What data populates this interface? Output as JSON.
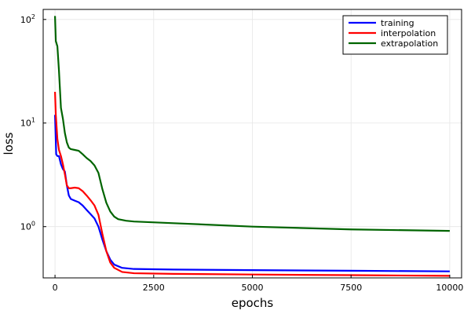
{
  "chart_data": {
    "type": "line",
    "title": "",
    "xlabel": "epochs",
    "ylabel": "loss",
    "y_scale": "log10",
    "xlim": [
      -300,
      10300
    ],
    "ylim": [
      0.32,
      125
    ],
    "x_ticks": [
      0,
      2500,
      5000,
      7500,
      10000
    ],
    "x_tick_labels": [
      "0",
      "2500",
      "5000",
      "7500",
      "10000"
    ],
    "y_ticks": [
      1,
      10,
      100
    ],
    "y_tick_bases": [
      "10",
      "10",
      "10"
    ],
    "y_tick_exponents": [
      "0",
      "1",
      "2"
    ],
    "grid": true,
    "legend_position": "top-right",
    "series": [
      {
        "name": "training",
        "color": "#0000ff",
        "points": [
          [
            0,
            12
          ],
          [
            30,
            5
          ],
          [
            60,
            4.8
          ],
          [
            100,
            4.8
          ],
          [
            150,
            4
          ],
          [
            200,
            3.6
          ],
          [
            250,
            3.4
          ],
          [
            300,
            2.5
          ],
          [
            350,
            2.0
          ],
          [
            400,
            1.85
          ],
          [
            500,
            1.78
          ],
          [
            600,
            1.72
          ],
          [
            700,
            1.6
          ],
          [
            800,
            1.45
          ],
          [
            900,
            1.32
          ],
          [
            1000,
            1.2
          ],
          [
            1100,
            1.0
          ],
          [
            1200,
            0.75
          ],
          [
            1300,
            0.58
          ],
          [
            1400,
            0.48
          ],
          [
            1500,
            0.43
          ],
          [
            1700,
            0.4
          ],
          [
            2000,
            0.39
          ],
          [
            3000,
            0.385
          ],
          [
            5000,
            0.38
          ],
          [
            7500,
            0.375
          ],
          [
            10000,
            0.37
          ]
        ]
      },
      {
        "name": "interpolation",
        "color": "#ff0000",
        "points": [
          [
            0,
            20
          ],
          [
            20,
            12
          ],
          [
            60,
            7
          ],
          [
            100,
            5.5
          ],
          [
            150,
            4.8
          ],
          [
            200,
            4.0
          ],
          [
            250,
            3.2
          ],
          [
            300,
            2.5
          ],
          [
            350,
            2.35
          ],
          [
            400,
            2.35
          ],
          [
            500,
            2.38
          ],
          [
            600,
            2.35
          ],
          [
            700,
            2.2
          ],
          [
            800,
            2.0
          ],
          [
            900,
            1.8
          ],
          [
            1000,
            1.6
          ],
          [
            1100,
            1.3
          ],
          [
            1200,
            0.85
          ],
          [
            1300,
            0.58
          ],
          [
            1400,
            0.45
          ],
          [
            1500,
            0.4
          ],
          [
            1700,
            0.365
          ],
          [
            2000,
            0.355
          ],
          [
            3000,
            0.35
          ],
          [
            5000,
            0.345
          ],
          [
            7500,
            0.34
          ],
          [
            10000,
            0.335
          ]
        ]
      },
      {
        "name": "extrapolation",
        "color": "#006400",
        "points": [
          [
            0,
            108
          ],
          [
            20,
            62
          ],
          [
            60,
            55
          ],
          [
            100,
            32
          ],
          [
            150,
            14
          ],
          [
            200,
            11
          ],
          [
            250,
            8
          ],
          [
            300,
            6.5
          ],
          [
            350,
            5.8
          ],
          [
            400,
            5.6
          ],
          [
            500,
            5.5
          ],
          [
            600,
            5.4
          ],
          [
            700,
            5.0
          ],
          [
            800,
            4.6
          ],
          [
            900,
            4.3
          ],
          [
            1000,
            3.9
          ],
          [
            1100,
            3.3
          ],
          [
            1200,
            2.3
          ],
          [
            1300,
            1.7
          ],
          [
            1400,
            1.4
          ],
          [
            1500,
            1.25
          ],
          [
            1600,
            1.18
          ],
          [
            1800,
            1.14
          ],
          [
            2000,
            1.12
          ],
          [
            3000,
            1.08
          ],
          [
            5000,
            1.0
          ],
          [
            7500,
            0.94
          ],
          [
            10000,
            0.91
          ]
        ]
      }
    ]
  }
}
